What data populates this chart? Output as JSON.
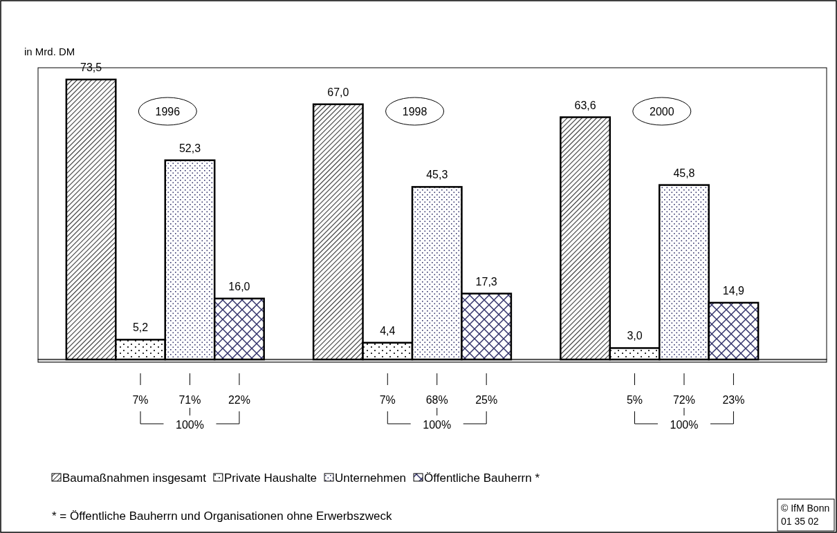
{
  "chart_data": {
    "type": "bar",
    "ylabel": "in Mrd. DM",
    "categories": [
      "1996",
      "1998",
      "2000"
    ],
    "series": [
      {
        "name": "Baumaßnahmen insgesamt",
        "color": "#000000",
        "values": [
          73.5,
          67.0,
          63.6
        ],
        "value_labels": [
          "73,5",
          "67,0",
          "63,6"
        ]
      },
      {
        "name": "Private Haushalte",
        "color": "#000000",
        "values": [
          5.2,
          4.4,
          3.0
        ],
        "value_labels": [
          "5,2",
          "4,4",
          "3,0"
        ]
      },
      {
        "name": "Unternehmen",
        "color": "#000000",
        "values": [
          52.3,
          45.3,
          45.8
        ],
        "value_labels": [
          "52,3",
          "45,3",
          "45,8"
        ]
      },
      {
        "name": "Öffentliche Bauherrn *",
        "color": "#000000",
        "values": [
          16.0,
          17.3,
          14.9
        ],
        "value_labels": [
          "16,0",
          "17,3",
          "14,9"
        ]
      }
    ],
    "legend": "bottom",
    "annotations": [
      "7%",
      "71%",
      "22%",
      "100%",
      "7%",
      "68%",
      "25%",
      "100%",
      "5%",
      "72%",
      "23%",
      "100%",
      "* = Öffentliche Bauherrn und Organisationen ohne Erwerbszweck",
      "© IfM Bonn",
      "01   35   02"
    ]
  }
}
